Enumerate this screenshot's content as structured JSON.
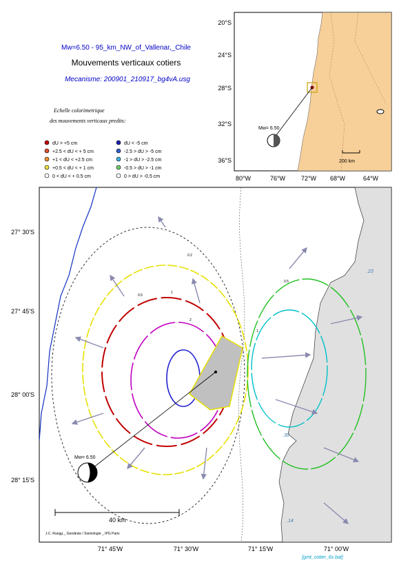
{
  "header": {
    "title": "Mw=6.50 - 95_km_NW_of_Vallenar,_Chile",
    "subtitle": "Mouvements verticaux cotiers",
    "mechanism": "Mecanisme: 200901_210917_bg4vA.usg"
  },
  "legend": {
    "heading": [
      "Echelle colorimetrique",
      "des mouvements verticaux predits:"
    ],
    "positive": [
      "dU > +5 cm",
      "+2.5 < dU < + 5 cm",
      "+1 < dU < +2.5 cm",
      "+0.5 < dU < + 1 cm",
      "0 < dU < + 0.5 cm"
    ],
    "negative": [
      "dU < -5 cm",
      "-2.5 > dU > -5 cm",
      "-1 > dU > -2.5 cm",
      "-0.5 > dU > -1 cm",
      "0 > dU > -0.5 cm"
    ]
  },
  "inset_map": {
    "lat_labels": [
      "20°S",
      "24°S",
      "28°S",
      "32°S",
      "36°S"
    ],
    "lon_labels": [
      "80°W",
      "76°W",
      "72°W",
      "68°W",
      "64°W"
    ],
    "magnitude": "Mw= 6.50",
    "scale": "200 km"
  },
  "main_map": {
    "lat_labels": [
      "27° 30'S",
      "27° 45'S",
      "28° 00'S",
      "28° 15'S"
    ],
    "lon_labels": [
      "71° 45'W",
      "71° 30'W",
      "71° 15'W",
      "71° 00'W"
    ],
    "magnitude": "Mw= 6.50",
    "scale": "40 km",
    "contour_labels": [
      "0.5",
      "1",
      "2",
      "0.5",
      "1",
      "0.2"
    ],
    "station_labels": [
      ".23",
      ".30",
      ".14"
    ]
  },
  "footer": {
    "credit": "J.C. Ruegg _ Geodesie / Sismologie _ IPG Paris",
    "script": "[gmt_cotier_6x.bat]"
  }
}
